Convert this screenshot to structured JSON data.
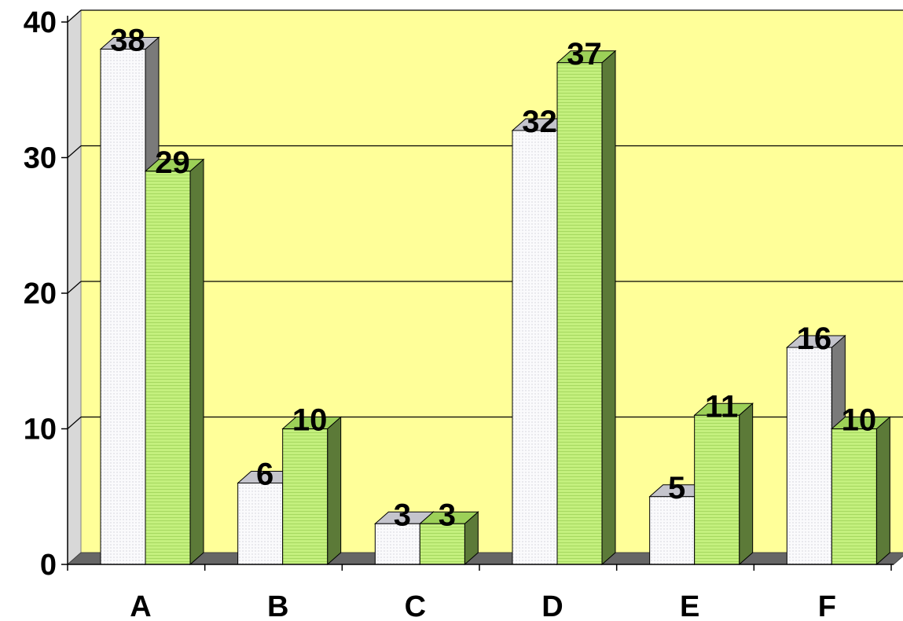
{
  "chart_data": {
    "type": "bar",
    "title": "",
    "xlabel": "",
    "ylabel": "",
    "categories": [
      "A",
      "B",
      "C",
      "D",
      "E",
      "F"
    ],
    "series": [
      {
        "values": [
          38,
          6,
          3,
          32,
          5,
          16
        ],
        "color": "#f4f4f8",
        "side_color": "#7a7a7a",
        "top_color": "#c4c4cc"
      },
      {
        "values": [
          29,
          10,
          3,
          37,
          11,
          10
        ],
        "color": "#b8ee6e",
        "side_color": "#5c7a38",
        "top_color": "#9cd058"
      }
    ],
    "ylim": [
      0,
      40
    ],
    "yticks": [
      0,
      10,
      20,
      30,
      40
    ],
    "grid": true,
    "plot_background": "#ffff99",
    "data_labels": true
  }
}
